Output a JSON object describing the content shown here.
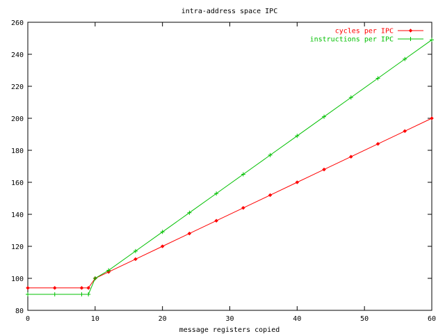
{
  "chart_data": {
    "type": "line",
    "title": "intra-address space IPC",
    "xlabel": "message registers copied",
    "ylabel": "",
    "xlim": [
      0,
      60
    ],
    "ylim": [
      80,
      260
    ],
    "x_ticks": [
      0,
      10,
      20,
      30,
      40,
      50,
      60
    ],
    "y_ticks": [
      80,
      100,
      120,
      140,
      160,
      180,
      200,
      220,
      240,
      260
    ],
    "grid": false,
    "legend_position": "top-right",
    "series": [
      {
        "name": "cycles per IPC",
        "color": "#ff0000",
        "marker": "diamond",
        "points": [
          [
            0,
            94
          ],
          [
            4,
            94
          ],
          [
            8,
            94
          ],
          [
            9,
            94
          ],
          [
            10,
            100
          ],
          [
            12,
            104
          ],
          [
            16,
            112
          ],
          [
            20,
            120
          ],
          [
            24,
            128
          ],
          [
            28,
            136
          ],
          [
            32,
            144
          ],
          [
            36,
            152
          ],
          [
            40,
            160
          ],
          [
            44,
            168
          ],
          [
            48,
            176
          ],
          [
            52,
            184
          ],
          [
            56,
            192
          ],
          [
            60,
            200
          ]
        ]
      },
      {
        "name": "instructions per IPC",
        "color": "#00c000",
        "marker": "plus",
        "points": [
          [
            0,
            90
          ],
          [
            4,
            90
          ],
          [
            8,
            90
          ],
          [
            9,
            90
          ],
          [
            10,
            100
          ],
          [
            12,
            105
          ],
          [
            16,
            117
          ],
          [
            20,
            129
          ],
          [
            24,
            141
          ],
          [
            28,
            153
          ],
          [
            32,
            165
          ],
          [
            36,
            177
          ],
          [
            40,
            189
          ],
          [
            44,
            201
          ],
          [
            48,
            213
          ],
          [
            52,
            225
          ],
          [
            56,
            237
          ],
          [
            60,
            249
          ]
        ]
      }
    ]
  }
}
